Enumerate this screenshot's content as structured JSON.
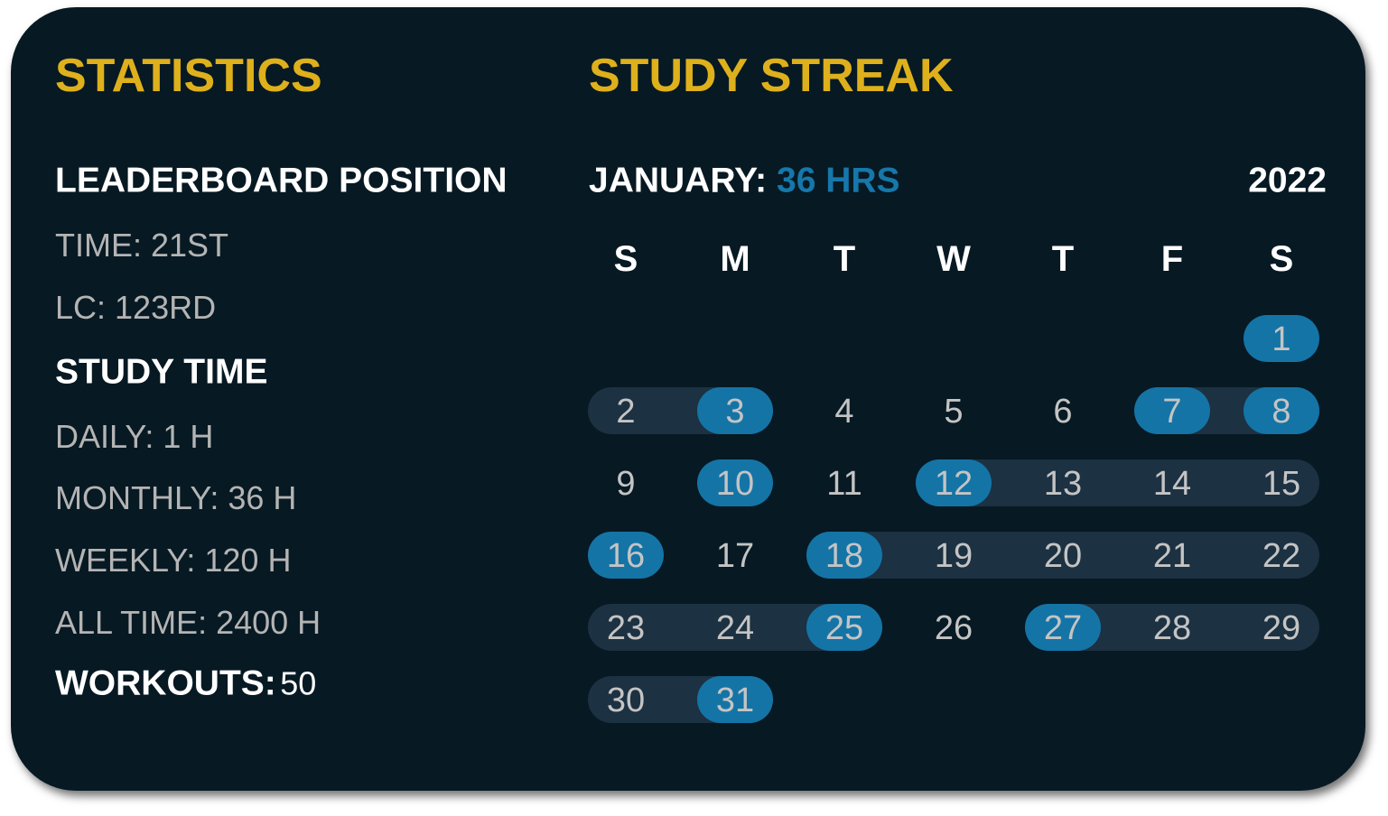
{
  "statistics": {
    "title": "STATISTICS",
    "leaderboard_heading": "LEADERBOARD POSITION",
    "leaderboard": [
      "TIME: 21ST",
      "LC: 123RD"
    ],
    "study_time_heading": "STUDY TIME",
    "study_time": [
      "DAILY: 1 H",
      "MONTHLY: 36 H",
      "WEEKLY: 120 H",
      "ALL TIME: 2400 H"
    ],
    "workouts_label": "WORKOUTS:",
    "workouts_value": "50"
  },
  "streak": {
    "title": "STUDY STREAK",
    "month_label": "JANUARY:",
    "month_hours": "36 HRS",
    "year": "2022",
    "weekdays": [
      "S",
      "M",
      "T",
      "W",
      "T",
      "F",
      "S"
    ],
    "first_weekday_index": 6,
    "days_in_month": 31,
    "highlighted_days": [
      1,
      3,
      7,
      8,
      10,
      12,
      16,
      18,
      25,
      27,
      31
    ],
    "streak_ranges": [
      [
        2,
        3
      ],
      [
        7,
        8
      ],
      [
        12,
        15
      ],
      [
        18,
        22
      ],
      [
        23,
        25
      ],
      [
        27,
        29
      ],
      [
        30,
        31
      ]
    ]
  },
  "colors": {
    "title": "#deb01c",
    "background": "#071923",
    "highlight": "#1474a6",
    "streak_band": "#1c3142",
    "accent_text": "#1677aa"
  }
}
